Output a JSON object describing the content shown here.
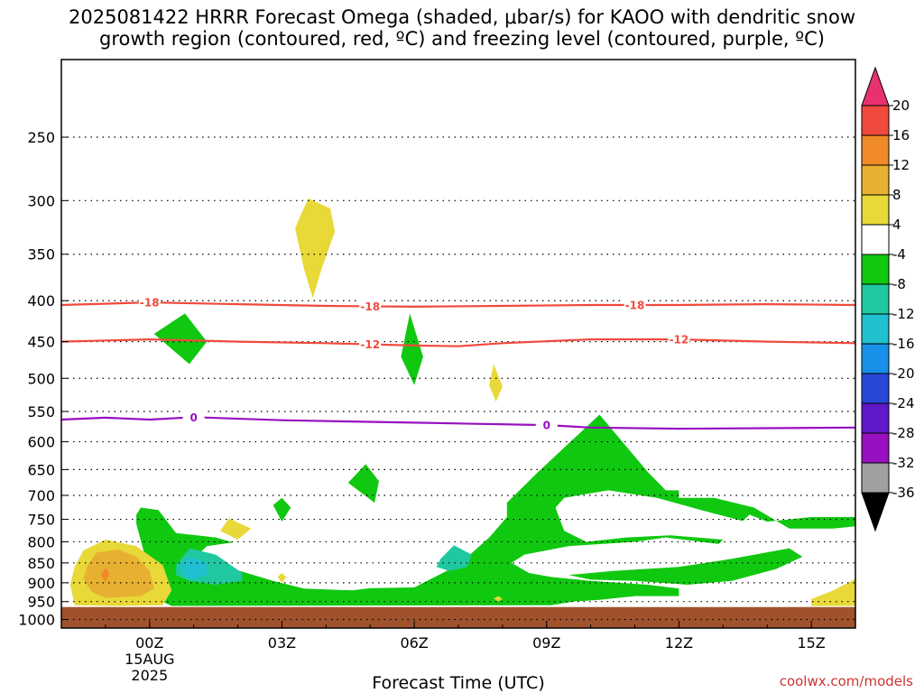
{
  "chart_data": {
    "type": "heatmap",
    "title_line1": "2025081422 HRRR Forecast Omega (shaded, μbar/s) for KAOO with dendritic snow",
    "title_line2": "growth region (contoured, red, ºC) and freezing level (contoured, purple, ºC)",
    "xlabel": "Forecast Time (UTC)",
    "x_ticks": [
      {
        "hour": 0,
        "label": "00Z",
        "date": "15AUG",
        "year": "2025"
      },
      {
        "hour": 3,
        "label": "03Z"
      },
      {
        "hour": 6,
        "label": "06Z"
      },
      {
        "hour": 9,
        "label": "09Z"
      },
      {
        "hour": 12,
        "label": "12Z"
      },
      {
        "hour": 15,
        "label": "15Z"
      }
    ],
    "xlim": [
      -2,
      16
    ],
    "ylim_hpa": [
      1025,
      200
    ],
    "y_ticks": [
      250,
      300,
      350,
      400,
      450,
      500,
      550,
      600,
      650,
      700,
      750,
      800,
      850,
      900,
      950,
      1000
    ],
    "terrain_top_hpa": 965,
    "colorbar": {
      "labels": [
        "20",
        "16",
        "12",
        "8",
        "4",
        "-4",
        "-8",
        "-12",
        "-16",
        "-20",
        "-24",
        "-28",
        "-32",
        "-36"
      ],
      "colors": [
        "#e8326e",
        "#f04a3c",
        "#f08a28",
        "#e8b030",
        "#e8d838",
        "#ffffff",
        "#10c810",
        "#20c8a0",
        "#20c0d0",
        "#1890e8",
        "#2848d8",
        "#6018c8",
        "#9810c0",
        "#a0a0a0",
        "#000000"
      ]
    },
    "dgz_contours": [
      {
        "label": "-18",
        "color": "#f04a3c",
        "points": [
          [
            -2,
            405
          ],
          [
            0,
            402
          ],
          [
            2,
            404
          ],
          [
            4,
            406
          ],
          [
            6,
            407
          ],
          [
            8,
            406
          ],
          [
            10,
            405
          ],
          [
            12,
            405
          ],
          [
            14,
            404
          ],
          [
            16,
            405
          ]
        ],
        "label_hours": [
          0,
          5,
          11
        ]
      },
      {
        "label": "-12",
        "color": "#f04a3c",
        "points": [
          [
            -2,
            450
          ],
          [
            0,
            447
          ],
          [
            2,
            450
          ],
          [
            4,
            452
          ],
          [
            6,
            455
          ],
          [
            7,
            456
          ],
          [
            8,
            452
          ],
          [
            10,
            447
          ],
          [
            12,
            447
          ],
          [
            14,
            450
          ],
          [
            16,
            452
          ]
        ],
        "label_hours": [
          5,
          12
        ]
      }
    ],
    "freezing_level": {
      "label": "0",
      "color": "#9810c0",
      "points": [
        [
          -2,
          563
        ],
        [
          -1,
          560
        ],
        [
          0,
          563
        ],
        [
          1,
          559
        ],
        [
          3,
          564
        ],
        [
          6,
          568
        ],
        [
          9,
          572
        ],
        [
          10,
          576
        ],
        [
          12,
          578
        ],
        [
          14,
          577
        ],
        [
          16,
          576
        ]
      ],
      "label_hours": [
        1,
        9
      ]
    },
    "omega_regions": [
      {
        "value": -6,
        "color": "#10c810",
        "points": [
          [
            -0.2,
            725
          ],
          [
            0.2,
            730
          ],
          [
            0.6,
            780
          ],
          [
            1.5,
            790
          ],
          [
            2.5,
            820
          ],
          [
            3.5,
            880
          ],
          [
            4.5,
            915
          ],
          [
            6,
            912
          ],
          [
            7,
            855
          ],
          [
            7.7,
            790
          ],
          [
            8.1,
            745
          ],
          [
            8.1,
            715
          ],
          [
            8.8,
            655
          ],
          [
            10.2,
            555
          ],
          [
            11.3,
            655
          ],
          [
            11.7,
            690
          ],
          [
            12,
            690
          ],
          [
            12,
            705
          ],
          [
            12.8,
            705
          ],
          [
            13.7,
            725
          ],
          [
            14.5,
            770
          ],
          [
            15.5,
            770
          ],
          [
            16,
            765
          ],
          [
            16,
            745
          ],
          [
            15,
            745
          ],
          [
            14,
            755
          ],
          [
            13.6,
            740
          ],
          [
            13.2,
            775
          ],
          [
            12.9,
            805
          ],
          [
            11.7,
            790
          ],
          [
            11,
            800
          ],
          [
            9.5,
            810
          ],
          [
            8.5,
            830
          ],
          [
            8.2,
            850
          ],
          [
            8.6,
            875
          ],
          [
            9.1,
            885
          ],
          [
            10,
            895
          ],
          [
            11.3,
            905
          ],
          [
            12,
            915
          ],
          [
            12,
            935
          ],
          [
            11,
            935
          ],
          [
            10.2,
            945
          ],
          [
            9.6,
            950
          ],
          [
            9.1,
            960
          ],
          [
            0.5,
            962
          ],
          [
            0.2,
            945
          ],
          [
            0.3,
            900
          ],
          [
            -0.1,
            835
          ],
          [
            -0.3,
            760
          ],
          [
            -0.3,
            740
          ]
        ]
      },
      {
        "value": 0,
        "color": "#ffffff",
        "points": [
          [
            1,
            840
          ],
          [
            1.9,
            865
          ],
          [
            2.8,
            895
          ],
          [
            3.5,
            915
          ],
          [
            4.6,
            920
          ],
          [
            5.6,
            905
          ],
          [
            6.2,
            870
          ],
          [
            6.7,
            830
          ],
          [
            6.4,
            815
          ],
          [
            5.8,
            835
          ],
          [
            5.2,
            845
          ],
          [
            4.2,
            830
          ],
          [
            3.1,
            805
          ],
          [
            2,
            800
          ],
          [
            1.3,
            810
          ]
        ]
      },
      {
        "value": 0,
        "color": "#ffffff",
        "points": [
          [
            9.2,
            725
          ],
          [
            9.4,
            705
          ],
          [
            10.4,
            690
          ],
          [
            11.5,
            705
          ],
          [
            12.5,
            730
          ],
          [
            13.5,
            755
          ],
          [
            13.8,
            770
          ],
          [
            13,
            795
          ],
          [
            11.8,
            785
          ],
          [
            10.8,
            790
          ],
          [
            9.9,
            800
          ],
          [
            9.4,
            775
          ],
          [
            9.3,
            750
          ]
        ]
      },
      {
        "value": -6,
        "color": "#10c810",
        "points": [
          [
            9.5,
            880
          ],
          [
            10.5,
            870
          ],
          [
            12,
            860
          ],
          [
            13.2,
            840
          ],
          [
            14.5,
            815
          ],
          [
            14.8,
            835
          ],
          [
            14.2,
            865
          ],
          [
            13.2,
            895
          ],
          [
            12.2,
            905
          ],
          [
            11,
            895
          ],
          [
            10,
            892
          ]
        ]
      },
      {
        "value": -10,
        "color": "#20c8a0",
        "points": [
          [
            0.6,
            855
          ],
          [
            0.9,
            815
          ],
          [
            1.5,
            830
          ],
          [
            2.1,
            875
          ],
          [
            2.1,
            895
          ],
          [
            1.5,
            905
          ],
          [
            0.9,
            895
          ],
          [
            0.6,
            880
          ]
        ]
      },
      {
        "value": -14,
        "color": "#20c0d0",
        "points": [
          [
            0.7,
            855
          ],
          [
            0.9,
            835
          ],
          [
            1.3,
            850
          ],
          [
            1.3,
            880
          ],
          [
            1,
            892
          ],
          [
            0.8,
            885
          ]
        ]
      },
      {
        "value": -10,
        "color": "#20c8a0",
        "points": [
          [
            6.6,
            840
          ],
          [
            6.9,
            808
          ],
          [
            7.3,
            830
          ],
          [
            7.2,
            860
          ],
          [
            6.8,
            870
          ],
          [
            6.5,
            860
          ]
        ]
      },
      {
        "value": 6,
        "color": "#e8d838",
        "points": [
          [
            -1.7,
            860
          ],
          [
            -1.5,
            820
          ],
          [
            -1,
            795
          ],
          [
            -0.3,
            810
          ],
          [
            0.3,
            855
          ],
          [
            0.5,
            920
          ],
          [
            0.3,
            960
          ],
          [
            -0.7,
            962
          ],
          [
            -1.7,
            960
          ],
          [
            -1.8,
            905
          ]
        ]
      },
      {
        "value": 10,
        "color": "#e8b030",
        "points": [
          [
            -1.4,
            855
          ],
          [
            -1.2,
            825
          ],
          [
            -0.7,
            818
          ],
          [
            -0.3,
            835
          ],
          [
            0,
            870
          ],
          [
            0.1,
            915
          ],
          [
            -0.2,
            935
          ],
          [
            -1,
            940
          ],
          [
            -1.3,
            925
          ],
          [
            -1.5,
            890
          ]
        ]
      },
      {
        "value": 14,
        "color": "#f08a28",
        "points": [
          [
            -1.1,
            880
          ],
          [
            -1,
            862
          ],
          [
            -0.9,
            875
          ],
          [
            -1,
            900
          ]
        ]
      },
      {
        "value": 6,
        "color": "#e8d838",
        "points": [
          [
            3.4,
            315
          ],
          [
            3.6,
            298
          ],
          [
            4.1,
            307
          ],
          [
            4.2,
            328
          ],
          [
            3.9,
            365
          ],
          [
            3.7,
            397
          ],
          [
            3.5,
            365
          ],
          [
            3.3,
            325
          ]
        ]
      },
      {
        "value": 6,
        "color": "#e8d838",
        "points": [
          [
            7.7,
            510
          ],
          [
            7.8,
            480
          ],
          [
            8.0,
            512
          ],
          [
            7.85,
            535
          ]
        ]
      },
      {
        "value": 6,
        "color": "#e8d838",
        "points": [
          [
            1.6,
            775
          ],
          [
            1.8,
            748
          ],
          [
            2.3,
            770
          ],
          [
            2,
            795
          ]
        ]
      },
      {
        "value": 6,
        "color": "#e8d838",
        "points": [
          [
            2.9,
            885
          ],
          [
            3,
            875
          ],
          [
            3.1,
            885
          ],
          [
            3,
            900
          ]
        ]
      },
      {
        "value": 6,
        "color": "#e8d838",
        "points": [
          [
            7.8,
            942
          ],
          [
            7.9,
            935
          ],
          [
            8.0,
            942
          ],
          [
            7.9,
            950
          ]
        ]
      },
      {
        "value": 6,
        "color": "#e8d838",
        "points": [
          [
            15,
            943
          ],
          [
            15.5,
            920
          ],
          [
            16,
            890
          ],
          [
            16,
            962
          ],
          [
            15,
            962
          ]
        ]
      },
      {
        "value": -6,
        "color": "#10c810",
        "points": [
          [
            0.1,
            440
          ],
          [
            0.8,
            415
          ],
          [
            1.3,
            450
          ],
          [
            0.9,
            480
          ]
        ]
      },
      {
        "value": -6,
        "color": "#10c810",
        "points": [
          [
            5.7,
            470
          ],
          [
            5.9,
            415
          ],
          [
            6.2,
            470
          ],
          [
            6,
            510
          ]
        ]
      },
      {
        "value": -6,
        "color": "#10c810",
        "points": [
          [
            4.5,
            675
          ],
          [
            4.9,
            640
          ],
          [
            5.2,
            672
          ],
          [
            5.1,
            715
          ]
        ]
      },
      {
        "value": -6,
        "color": "#10c810",
        "points": [
          [
            2.8,
            720
          ],
          [
            3,
            705
          ],
          [
            3.2,
            725
          ],
          [
            3,
            755
          ]
        ]
      }
    ],
    "credit": "coolwx.com/models"
  }
}
